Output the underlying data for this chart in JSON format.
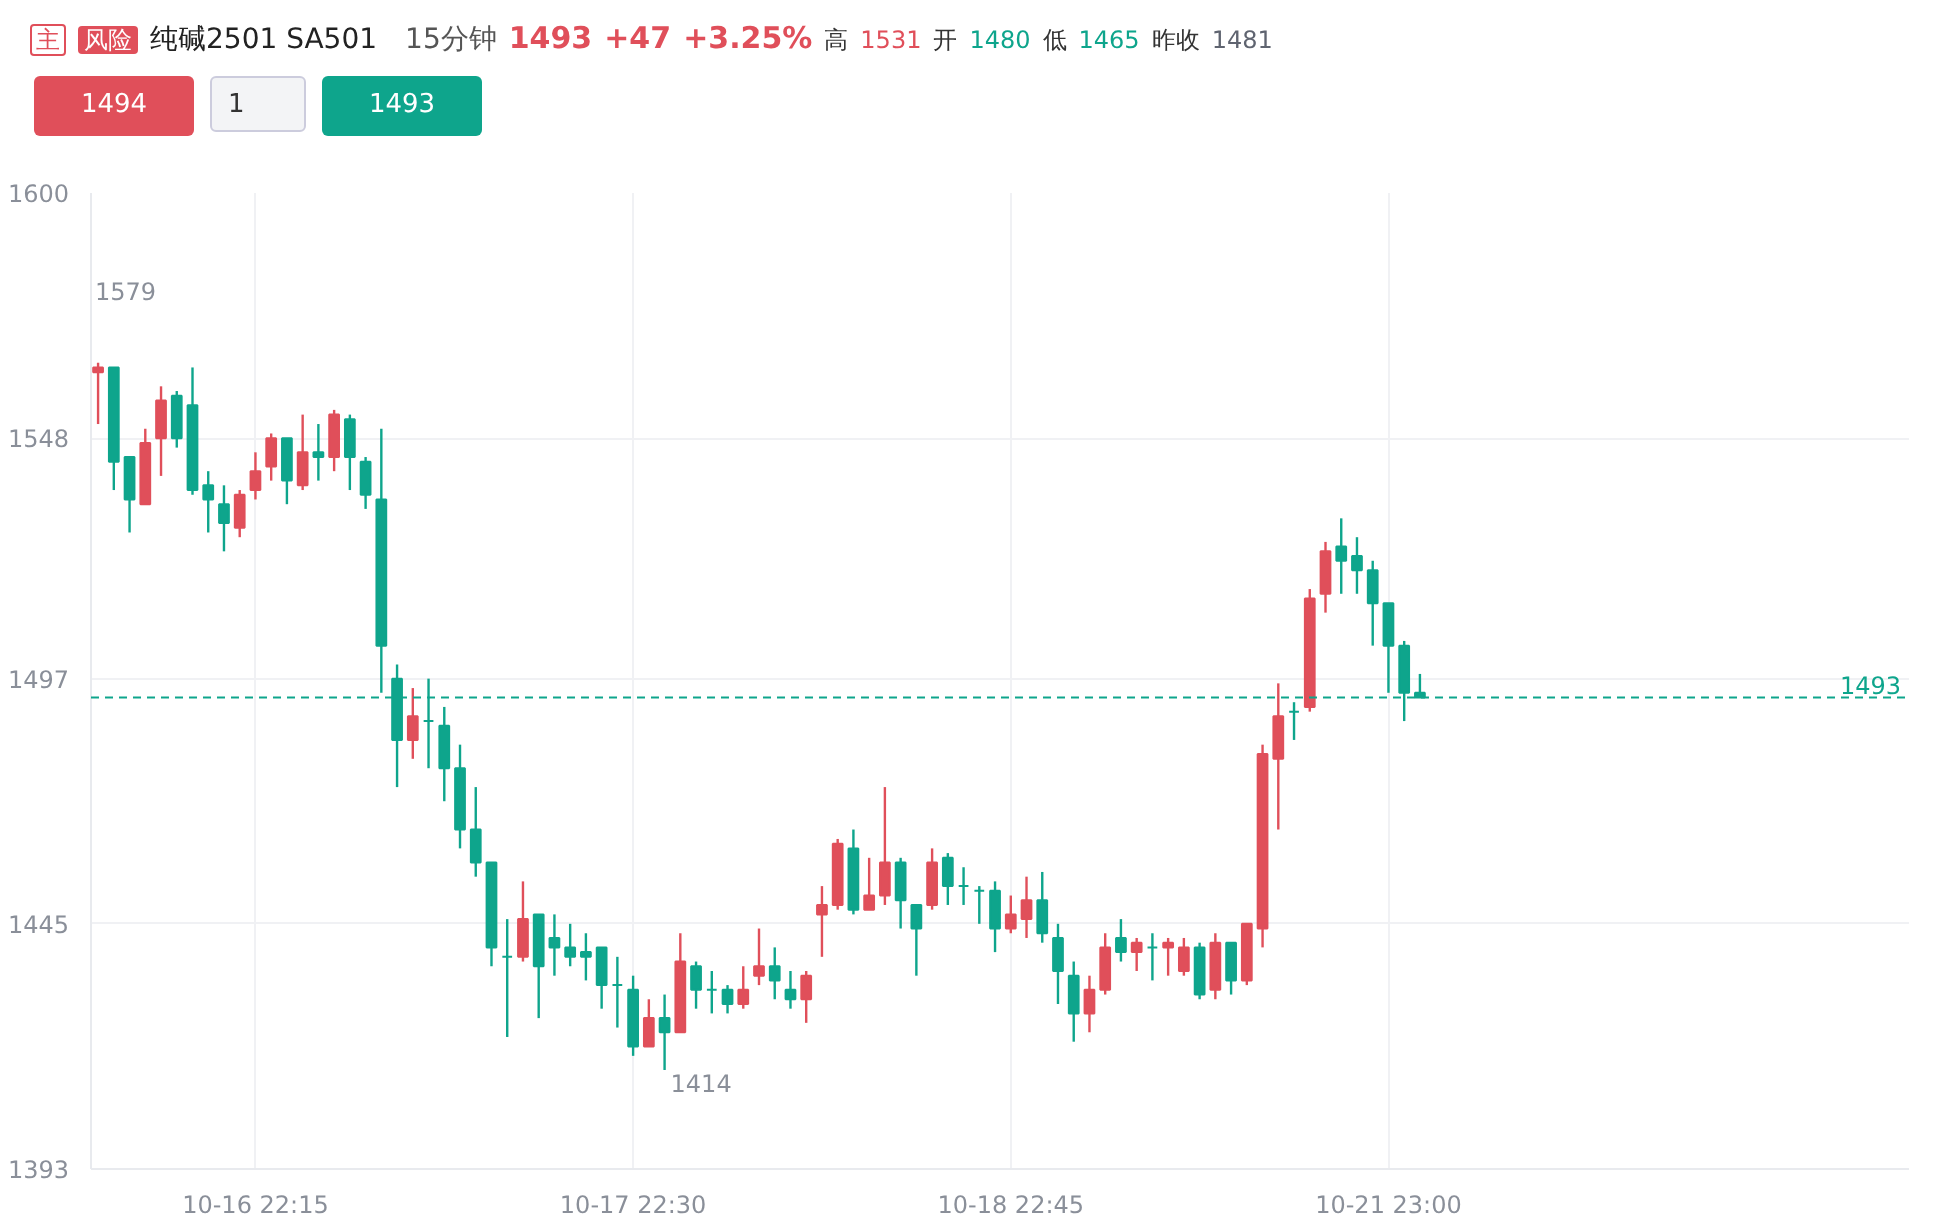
{
  "chart_data": {
    "type": "candlestick",
    "title": "纯碱2501 SA501",
    "subtitle": "15分钟",
    "categories": [
      null,
      null,
      null,
      null,
      null,
      null,
      null,
      null,
      null,
      null,
      "10-16 22:15",
      null,
      null,
      null,
      null,
      null,
      null,
      null,
      null,
      null,
      null,
      null,
      null,
      null,
      null,
      null,
      null,
      null,
      null,
      null,
      null,
      null,
      null,
      null,
      "10-17 22:30",
      null,
      null,
      null,
      null,
      null,
      null,
      null,
      null,
      null,
      null,
      null,
      null,
      null,
      null,
      null,
      null,
      null,
      null,
      null,
      null,
      null,
      null,
      null,
      "10-18 22:45",
      null,
      null,
      null,
      null,
      null,
      null,
      null,
      null,
      null,
      null,
      null,
      null,
      null,
      null,
      null,
      null,
      null,
      null,
      null,
      null,
      null,
      null,
      null,
      "10-21 23:00",
      null,
      null
    ],
    "ohlc": [
      [
        1562,
        1564,
        1551,
        1563
      ],
      [
        1563,
        1563,
        1537,
        1543
      ],
      [
        1544,
        1544,
        1528,
        1535
      ],
      [
        1534,
        1550,
        1534,
        1547
      ],
      [
        1548,
        1559,
        1540,
        1556
      ],
      [
        1557,
        1558,
        1546,
        1548
      ],
      [
        1555,
        1563,
        1536,
        1537
      ],
      [
        1538,
        1541,
        1528,
        1535
      ],
      [
        1534,
        1538,
        1524,
        1530
      ],
      [
        1529,
        1537,
        1527,
        1536
      ],
      [
        1537,
        1545,
        1535,
        1541
      ],
      [
        1542,
        1549,
        1539,
        1548
      ],
      [
        1548,
        1548,
        1534,
        1539
      ],
      [
        1538,
        1553,
        1537,
        1545
      ],
      [
        1545,
        1551,
        1539,
        1544
      ],
      [
        1544,
        1554,
        1541,
        1553
      ],
      [
        1552,
        1553,
        1537,
        1544
      ],
      [
        1543,
        1544,
        1533,
        1536
      ],
      [
        1535,
        1550,
        1494,
        1504
      ],
      [
        1497,
        1500,
        1474,
        1484
      ],
      [
        1484,
        1495,
        1480,
        1489
      ],
      [
        1488,
        1497,
        1478,
        1488
      ],
      [
        1487,
        1491,
        1471,
        1478
      ],
      [
        1478,
        1483,
        1461,
        1465
      ],
      [
        1465,
        1474,
        1455,
        1458
      ],
      [
        1458,
        1458,
        1436,
        1440
      ],
      [
        1438,
        1446,
        1421,
        1438
      ],
      [
        1438,
        1454,
        1437,
        1446
      ],
      [
        1447,
        1447,
        1425,
        1436
      ],
      [
        1442,
        1447,
        1434,
        1440
      ],
      [
        1440,
        1445,
        1436,
        1438
      ],
      [
        1439,
        1443,
        1433,
        1438
      ],
      [
        1440,
        1440,
        1427,
        1432
      ],
      [
        1432,
        1438,
        1423,
        1432
      ],
      [
        1431,
        1434,
        1417,
        1419
      ],
      [
        1419,
        1429,
        1419,
        1425
      ],
      [
        1425,
        1430,
        1414,
        1422
      ],
      [
        1422,
        1443,
        1422,
        1437
      ],
      [
        1436,
        1437,
        1427,
        1431
      ],
      [
        1431,
        1435,
        1426,
        1431
      ],
      [
        1431,
        1432,
        1426,
        1428
      ],
      [
        1428,
        1436,
        1427,
        1431
      ],
      [
        1434,
        1444,
        1432,
        1436
      ],
      [
        1436,
        1440,
        1429,
        1433
      ],
      [
        1431,
        1435,
        1427,
        1429
      ],
      [
        1429,
        1435,
        1424,
        1434
      ],
      [
        1447,
        1453,
        1438,
        1449
      ],
      [
        1449,
        1463,
        1448,
        1462
      ],
      [
        1461,
        1465,
        1447,
        1448
      ],
      [
        1448,
        1459,
        1448,
        1451
      ],
      [
        1451,
        1474,
        1449,
        1458
      ],
      [
        1458,
        1459,
        1444,
        1450
      ],
      [
        1449,
        1449,
        1434,
        1444
      ],
      [
        1449,
        1461,
        1448,
        1458
      ],
      [
        1459,
        1460,
        1449,
        1453
      ],
      [
        1453,
        1457,
        1449,
        1453
      ],
      [
        1452,
        1453,
        1445,
        1452
      ],
      [
        1452,
        1454,
        1439,
        1444
      ],
      [
        1444,
        1451,
        1443,
        1447
      ],
      [
        1446,
        1455,
        1442,
        1450
      ],
      [
        1450,
        1456,
        1441,
        1443
      ],
      [
        1442,
        1445,
        1428,
        1435
      ],
      [
        1434,
        1437,
        1420,
        1426
      ],
      [
        1426,
        1434,
        1422,
        1431
      ],
      [
        1431,
        1443,
        1430,
        1440
      ],
      [
        1442,
        1446,
        1437,
        1439
      ],
      [
        1439,
        1442,
        1435,
        1441
      ],
      [
        1440,
        1443,
        1433,
        1440
      ],
      [
        1440,
        1442,
        1434,
        1441
      ],
      [
        1435,
        1442,
        1434,
        1440
      ],
      [
        1440,
        1441,
        1429,
        1430
      ],
      [
        1431,
        1443,
        1429,
        1441
      ],
      [
        1441,
        1441,
        1430,
        1433
      ],
      [
        1433,
        1445,
        1432,
        1445
      ],
      [
        1444,
        1483,
        1440,
        1481
      ],
      [
        1480,
        1496,
        1465,
        1489
      ],
      [
        1490,
        1492,
        1484,
        1490
      ],
      [
        1491,
        1516,
        1490,
        1514
      ],
      [
        1515,
        1526,
        1511,
        1524
      ],
      [
        1525,
        1531,
        1515,
        1522
      ],
      [
        1523,
        1527,
        1515,
        1520
      ],
      [
        1520,
        1522,
        1504,
        1513
      ],
      [
        1513,
        1513,
        1494,
        1504
      ],
      [
        1504,
        1505,
        1488,
        1494
      ],
      [
        1494,
        1498,
        1493,
        1493
      ]
    ],
    "colors": [
      "#e04f5a",
      "#0ea58c",
      "#0ea58c",
      "#e04f5a",
      "#e04f5a",
      "#0ea58c",
      "#0ea58c",
      "#0ea58c",
      "#0ea58c",
      "#e04f5a",
      "#e04f5a",
      "#e04f5a",
      "#0ea58c",
      "#e04f5a",
      "#0ea58c",
      "#e04f5a",
      "#0ea58c",
      "#0ea58c",
      "#0ea58c",
      "#0ea58c",
      "#e04f5a",
      "#0ea58c",
      "#0ea58c",
      "#0ea58c",
      "#0ea58c",
      "#0ea58c",
      "#0ea58c",
      "#e04f5a",
      "#0ea58c",
      "#0ea58c",
      "#0ea58c",
      "#0ea58c",
      "#0ea58c",
      "#0ea58c",
      "#0ea58c",
      "#e04f5a",
      "#0ea58c",
      "#e04f5a",
      "#0ea58c",
      "#0ea58c",
      "#0ea58c",
      "#e04f5a",
      "#e04f5a",
      "#0ea58c",
      "#0ea58c",
      "#e04f5a",
      "#e04f5a",
      "#e04f5a",
      "#0ea58c",
      "#e04f5a",
      "#e04f5a",
      "#0ea58c",
      "#0ea58c",
      "#e04f5a",
      "#0ea58c",
      "#0ea58c",
      "#0ea58c",
      "#0ea58c",
      "#e04f5a",
      "#e04f5a",
      "#0ea58c",
      "#0ea58c",
      "#0ea58c",
      "#e04f5a",
      "#e04f5a",
      "#0ea58c",
      "#e04f5a",
      "#0ea58c",
      "#e04f5a",
      "#e04f5a",
      "#0ea58c",
      "#e04f5a",
      "#0ea58c",
      "#e04f5a",
      "#e04f5a",
      "#e04f5a",
      "#0ea58c",
      "#e04f5a",
      "#e04f5a",
      "#0ea58c",
      "#0ea58c",
      "#0ea58c",
      "#0ea58c",
      "#0ea58c",
      "#0ea58c"
    ],
    "ylim": [
      1393,
      1600
    ],
    "yticks": [
      1393,
      1445,
      1497,
      1548,
      1600
    ],
    "grid": true,
    "ref_lines": [
      {
        "axis": "y",
        "value": 1493,
        "label": "1493",
        "color": "#0ea58c",
        "line_style": "dashed"
      }
    ],
    "annotations": [
      "主",
      "风险",
      "1493",
      "+47",
      "+3.25%",
      "高",
      "1531",
      "开",
      "1480",
      "低",
      "1465",
      "昨收",
      "1481",
      "1494",
      "1",
      "1493",
      "1579",
      "1414"
    ]
  }
}
